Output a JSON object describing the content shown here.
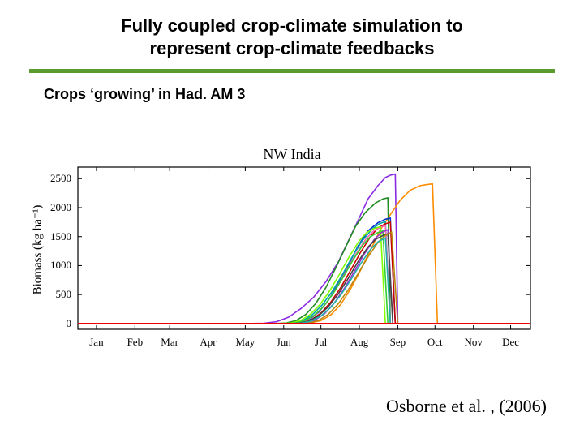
{
  "title_line1": "Fully coupled crop-climate simulation to",
  "title_line2": "represent crop-climate feedbacks",
  "subtitle": "Crops ‘growing’ in Had. AM 3",
  "citation": "Osborne et al. , (2006)",
  "colors": {
    "hr": "#5a9a2f",
    "axis": "#000000",
    "background": "#ffffff"
  },
  "chart": {
    "type": "line",
    "title": "NW India",
    "ylabel": "Biomass (kg ha⁻¹)",
    "xlim": [
      0,
      365
    ],
    "ylim": [
      -100,
      2700
    ],
    "yticks": [
      0,
      500,
      1000,
      1500,
      2000,
      2500
    ],
    "xticks_pos": [
      15,
      46,
      74,
      105,
      135,
      166,
      196,
      227,
      258,
      288,
      319,
      349
    ],
    "xticks_label": [
      "Jan",
      "Feb",
      "Mar",
      "Apr",
      "May",
      "Jun",
      "Jul",
      "Aug",
      "Sep",
      "Oct",
      "Nov",
      "Dec"
    ],
    "axis_color": "#000000",
    "line_width": 1.6,
    "series": [
      {
        "color": "#8a2be2",
        "pts": [
          [
            0,
            0
          ],
          [
            140,
            0
          ],
          [
            150,
            5
          ],
          [
            160,
            30
          ],
          [
            170,
            110
          ],
          [
            180,
            260
          ],
          [
            190,
            450
          ],
          [
            200,
            720
          ],
          [
            210,
            1060
          ],
          [
            218,
            1420
          ],
          [
            226,
            1780
          ],
          [
            234,
            2150
          ],
          [
            242,
            2380
          ],
          [
            248,
            2520
          ],
          [
            252,
            2560
          ],
          [
            256,
            2580
          ],
          [
            258,
            0
          ],
          [
            365,
            0
          ]
        ]
      },
      {
        "color": "#ff8c00",
        "pts": [
          [
            0,
            0
          ],
          [
            180,
            0
          ],
          [
            188,
            15
          ],
          [
            196,
            50
          ],
          [
            204,
            150
          ],
          [
            212,
            330
          ],
          [
            220,
            600
          ],
          [
            228,
            920
          ],
          [
            236,
            1270
          ],
          [
            244,
            1620
          ],
          [
            252,
            1880
          ],
          [
            260,
            2130
          ],
          [
            268,
            2300
          ],
          [
            276,
            2380
          ],
          [
            282,
            2400
          ],
          [
            286,
            2410
          ],
          [
            290,
            0
          ],
          [
            365,
            0
          ]
        ]
      },
      {
        "color": "#228b22",
        "pts": [
          [
            0,
            0
          ],
          [
            160,
            0
          ],
          [
            168,
            10
          ],
          [
            176,
            50
          ],
          [
            184,
            160
          ],
          [
            192,
            350
          ],
          [
            200,
            620
          ],
          [
            208,
            960
          ],
          [
            216,
            1320
          ],
          [
            224,
            1680
          ],
          [
            232,
            1920
          ],
          [
            240,
            2080
          ],
          [
            246,
            2150
          ],
          [
            250,
            2170
          ],
          [
            252,
            0
          ],
          [
            365,
            0
          ]
        ]
      },
      {
        "color": "#0033cc",
        "pts": [
          [
            0,
            0
          ],
          [
            170,
            0
          ],
          [
            178,
            10
          ],
          [
            186,
            60
          ],
          [
            194,
            190
          ],
          [
            202,
            400
          ],
          [
            210,
            680
          ],
          [
            218,
            1000
          ],
          [
            226,
            1340
          ],
          [
            234,
            1600
          ],
          [
            242,
            1740
          ],
          [
            248,
            1800
          ],
          [
            252,
            1820
          ],
          [
            256,
            0
          ],
          [
            365,
            0
          ]
        ]
      },
      {
        "color": "#00a5a5",
        "pts": [
          [
            0,
            0
          ],
          [
            165,
            0
          ],
          [
            173,
            8
          ],
          [
            181,
            45
          ],
          [
            189,
            150
          ],
          [
            197,
            320
          ],
          [
            205,
            550
          ],
          [
            213,
            830
          ],
          [
            221,
            1140
          ],
          [
            229,
            1420
          ],
          [
            237,
            1620
          ],
          [
            243,
            1720
          ],
          [
            248,
            1760
          ],
          [
            252,
            0
          ],
          [
            365,
            0
          ]
        ]
      },
      {
        "color": "#cc0000",
        "pts": [
          [
            0,
            0
          ],
          [
            172,
            0
          ],
          [
            180,
            10
          ],
          [
            188,
            60
          ],
          [
            196,
            180
          ],
          [
            204,
            370
          ],
          [
            212,
            620
          ],
          [
            220,
            920
          ],
          [
            228,
            1230
          ],
          [
            236,
            1500
          ],
          [
            242,
            1650
          ],
          [
            248,
            1720
          ],
          [
            252,
            1750
          ],
          [
            256,
            0
          ],
          [
            365,
            0
          ]
        ]
      },
      {
        "color": "#ff69b4",
        "pts": [
          [
            0,
            0
          ],
          [
            168,
            0
          ],
          [
            176,
            8
          ],
          [
            184,
            50
          ],
          [
            192,
            160
          ],
          [
            200,
            340
          ],
          [
            208,
            590
          ],
          [
            216,
            890
          ],
          [
            224,
            1190
          ],
          [
            232,
            1450
          ],
          [
            238,
            1590
          ],
          [
            244,
            1660
          ],
          [
            248,
            1690
          ],
          [
            252,
            0
          ],
          [
            365,
            0
          ]
        ]
      },
      {
        "color": "#7fff00",
        "pts": [
          [
            0,
            0
          ],
          [
            163,
            0
          ],
          [
            171,
            8
          ],
          [
            179,
            45
          ],
          [
            187,
            150
          ],
          [
            195,
            320
          ],
          [
            203,
            560
          ],
          [
            211,
            850
          ],
          [
            219,
            1160
          ],
          [
            227,
            1430
          ],
          [
            233,
            1570
          ],
          [
            239,
            1640
          ],
          [
            244,
            1670
          ],
          [
            248,
            0
          ],
          [
            365,
            0
          ]
        ]
      },
      {
        "color": "#32cd32",
        "pts": [
          [
            0,
            0
          ],
          [
            166,
            0
          ],
          [
            174,
            6
          ],
          [
            182,
            40
          ],
          [
            190,
            130
          ],
          [
            198,
            290
          ],
          [
            206,
            520
          ],
          [
            214,
            800
          ],
          [
            222,
            1100
          ],
          [
            230,
            1360
          ],
          [
            236,
            1500
          ],
          [
            242,
            1570
          ],
          [
            246,
            1600
          ],
          [
            250,
            0
          ],
          [
            365,
            0
          ]
        ]
      },
      {
        "color": "#9932cc",
        "pts": [
          [
            0,
            0
          ],
          [
            175,
            0
          ],
          [
            183,
            8
          ],
          [
            191,
            55
          ],
          [
            199,
            170
          ],
          [
            207,
            360
          ],
          [
            215,
            610
          ],
          [
            223,
            900
          ],
          [
            231,
            1200
          ],
          [
            239,
            1450
          ],
          [
            245,
            1570
          ],
          [
            250,
            1620
          ],
          [
            254,
            0
          ],
          [
            365,
            0
          ]
        ]
      },
      {
        "color": "#444444",
        "pts": [
          [
            0,
            0
          ],
          [
            170,
            0
          ],
          [
            178,
            6
          ],
          [
            186,
            40
          ],
          [
            194,
            130
          ],
          [
            202,
            290
          ],
          [
            210,
            510
          ],
          [
            218,
            780
          ],
          [
            226,
            1070
          ],
          [
            234,
            1320
          ],
          [
            240,
            1450
          ],
          [
            246,
            1520
          ],
          [
            250,
            1550
          ],
          [
            254,
            0
          ],
          [
            365,
            0
          ]
        ]
      },
      {
        "color": "#b8860b",
        "pts": [
          [
            0,
            0
          ],
          [
            178,
            0
          ],
          [
            186,
            8
          ],
          [
            194,
            50
          ],
          [
            202,
            160
          ],
          [
            210,
            340
          ],
          [
            218,
            580
          ],
          [
            226,
            860
          ],
          [
            234,
            1150
          ],
          [
            242,
            1400
          ],
          [
            248,
            1520
          ],
          [
            253,
            1580
          ],
          [
            258,
            0
          ],
          [
            365,
            0
          ]
        ]
      },
      {
        "color": "#20b2aa",
        "pts": [
          [
            0,
            0
          ],
          [
            172,
            0
          ],
          [
            180,
            6
          ],
          [
            188,
            40
          ],
          [
            196,
            130
          ],
          [
            204,
            280
          ],
          [
            212,
            490
          ],
          [
            220,
            750
          ],
          [
            228,
            1030
          ],
          [
            236,
            1280
          ],
          [
            242,
            1410
          ],
          [
            248,
            1480
          ],
          [
            252,
            0
          ],
          [
            365,
            0
          ]
        ]
      },
      {
        "color": "#ee0000",
        "pts": [
          [
            0,
            0
          ],
          [
            365,
            0
          ]
        ]
      }
    ]
  }
}
